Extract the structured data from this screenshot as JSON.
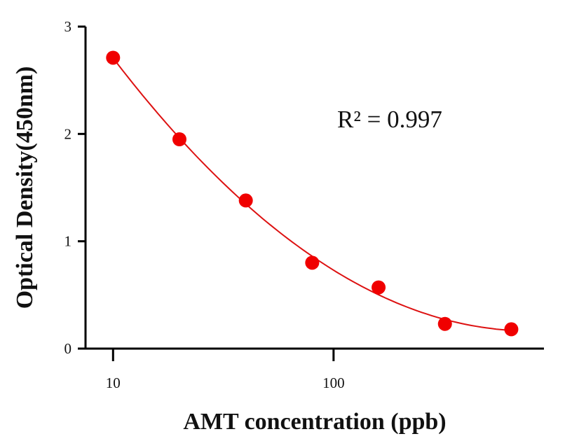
{
  "chart_data": {
    "type": "scatter",
    "title": "",
    "xlabel": "AMT concentration (ppb)",
    "ylabel": "Optical Density(450nm)",
    "x_scale": "log",
    "xlim": [
      7.5,
      900
    ],
    "ylim": [
      0,
      3
    ],
    "x_ticks": [
      10,
      100
    ],
    "x_tick_labels": [
      "10",
      "100"
    ],
    "y_ticks": [
      0,
      1,
      2,
      3
    ],
    "y_tick_labels": [
      "0",
      "1",
      "2",
      "3"
    ],
    "grid": false,
    "legend": "none",
    "annotation": "R² = 0.997",
    "series": [
      {
        "x": [
          10,
          20,
          40,
          80,
          160,
          320,
          640
        ],
        "y": [
          2.71,
          1.95,
          1.38,
          0.8,
          0.57,
          0.23,
          0.18
        ],
        "marker_color": "#f00000",
        "fit_line_color": "#dd1111"
      }
    ]
  }
}
